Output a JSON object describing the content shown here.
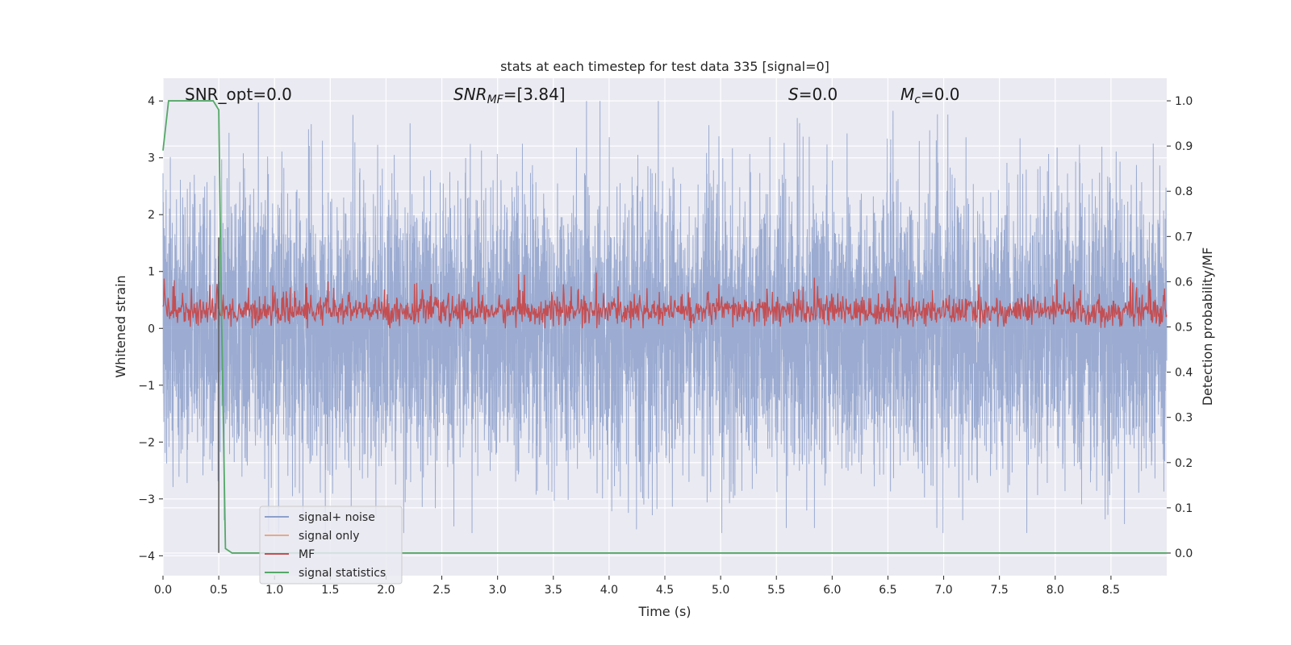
{
  "chart_data": {
    "type": "line",
    "title": "stats at each timestep for test data 335 [signal=0]",
    "xlabel": "Time (s)",
    "ylabel_left": "Whitened strain",
    "ylabel_right": "Detection probability/MF",
    "xlim": [
      0.0,
      9.0
    ],
    "ylim_left": [
      -4.35,
      4.4
    ],
    "ylim_right": [
      -0.05,
      1.05
    ],
    "xticks": [
      "0.0",
      "0.5",
      "1.0",
      "1.5",
      "2.0",
      "2.5",
      "3.0",
      "3.5",
      "4.0",
      "4.5",
      "5.0",
      "5.5",
      "6.0",
      "6.5",
      "7.0",
      "7.5",
      "8.0",
      "8.5"
    ],
    "yticks_left": [
      "4",
      "3",
      "2",
      "1",
      "0",
      "−1",
      "−2",
      "−3",
      "−4"
    ],
    "yticks_right": [
      "1.0",
      "0.9",
      "0.8",
      "0.7",
      "0.6",
      "0.5",
      "0.4",
      "0.3",
      "0.2",
      "0.1",
      "0.0"
    ],
    "grid": true,
    "annotations": {
      "snr_opt": "SNR_opt=0.0",
      "snr_mf_main": "SNR",
      "snr_mf_sub": "MF",
      "snr_mf_rest": "=[3.84]",
      "s_main": "S",
      "s_rest": "=0.0",
      "mc_main": "M",
      "mc_sub": "c",
      "mc_rest": "=0.0"
    },
    "legend": {
      "placement": "lower-left",
      "entries": [
        {
          "label": "signal+ noise",
          "color": "#8da0cb"
        },
        {
          "label": "signal only",
          "color": "#e8a88a"
        },
        {
          "label": "MF",
          "color": "#c44e52"
        },
        {
          "label": "signal statistics",
          "color": "#55a868"
        }
      ]
    },
    "series": [
      {
        "name": "signal+ noise",
        "color": "#8da0cb",
        "axis": "left",
        "envelope": {
          "typical_abs": 1.6,
          "peak_max": 4.0,
          "peak_min": -3.6
        }
      },
      {
        "name": "signal only",
        "color": "#e8a88a",
        "axis": "left",
        "values": []
      },
      {
        "name": "MF",
        "color": "#c44e52",
        "axis": "right",
        "envelope": {
          "center": 0.535,
          "typical_range": [
            0.5,
            0.58
          ],
          "peak_max": 0.62,
          "peak_min": 0.497
        }
      },
      {
        "name": "signal statistics",
        "color": "#55a868",
        "axis": "right",
        "x": [
          0.0,
          0.05,
          0.1,
          0.3,
          0.45,
          0.5,
          0.52,
          0.56,
          0.62,
          1.0,
          9.0
        ],
        "y": [
          0.89,
          1.0,
          1.0,
          1.0,
          1.0,
          0.98,
          0.6,
          0.01,
          0.0,
          0.0,
          0.0
        ]
      }
    ],
    "vline": {
      "x": 0.5,
      "ymin_left": -3.95,
      "ymax_left": 1.6,
      "color": "#555555"
    }
  }
}
